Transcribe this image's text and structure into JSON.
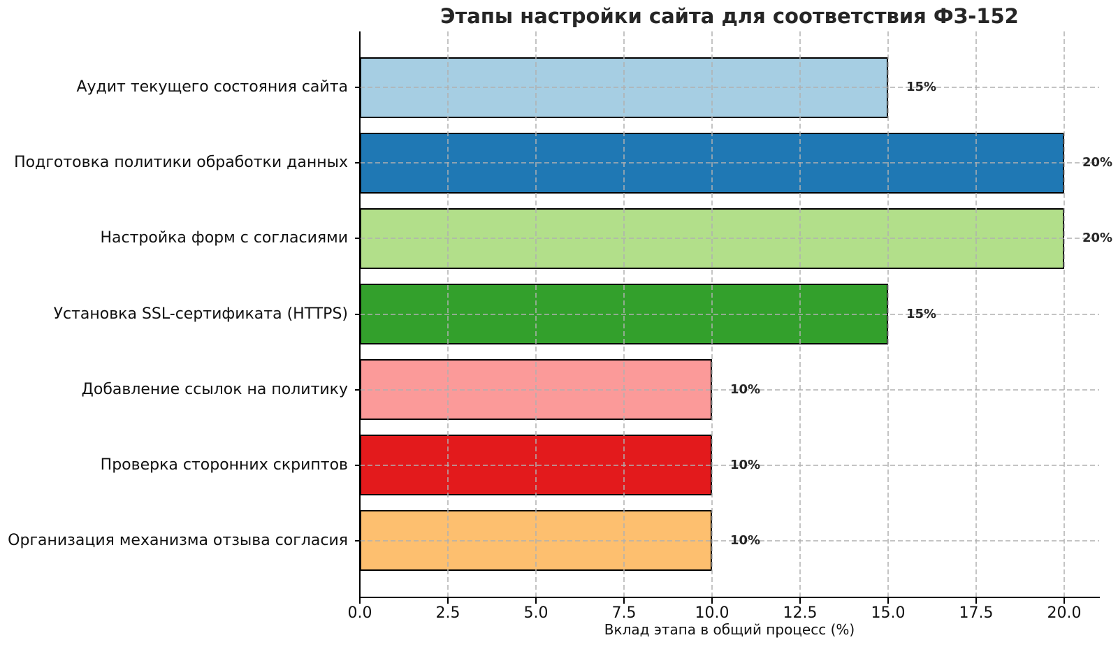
{
  "chart_data": {
    "type": "bar",
    "orientation": "horizontal",
    "title": "Этапы настройки сайта для соответствия ФЗ-152",
    "xlabel": "Вклад этапа в общий процесс (%)",
    "ylabel": "",
    "categories": [
      "Аудит текущего состояния сайта",
      "Подготовка политики обработки данных",
      "Настройка форм с согласиями",
      "Установка SSL-сертификата (HTTPS)",
      "Добавление ссылок на политику",
      "Проверка сторонних скриптов",
      "Организация механизма отзыва согласия"
    ],
    "values": [
      15,
      20,
      20,
      15,
      10,
      10,
      10
    ],
    "value_labels": [
      "15%",
      "20%",
      "20%",
      "15%",
      "10%",
      "10%",
      "10%"
    ],
    "bar_colors": [
      "#a6cee3",
      "#1f78b4",
      "#b2df8a",
      "#33a02c",
      "#fb9a99",
      "#e31a1c",
      "#fdbf6f"
    ],
    "bar_edge_color": "#000000",
    "xlim": [
      0,
      21
    ],
    "xticks": [
      0,
      2.5,
      5,
      7.5,
      10,
      12.5,
      15,
      17.5,
      20
    ],
    "xtick_labels": [
      "0.0",
      "2.5",
      "5.0",
      "7.5",
      "10.0",
      "12.5",
      "15.0",
      "17.5",
      "20.0"
    ],
    "grid": {
      "linestyle": "dashed",
      "color": "#b0b0b0",
      "axes": "both",
      "over_bars": true
    },
    "legend": "none",
    "background_color": "#ffffff",
    "text_color": "#111111",
    "title_color": "#262626"
  }
}
